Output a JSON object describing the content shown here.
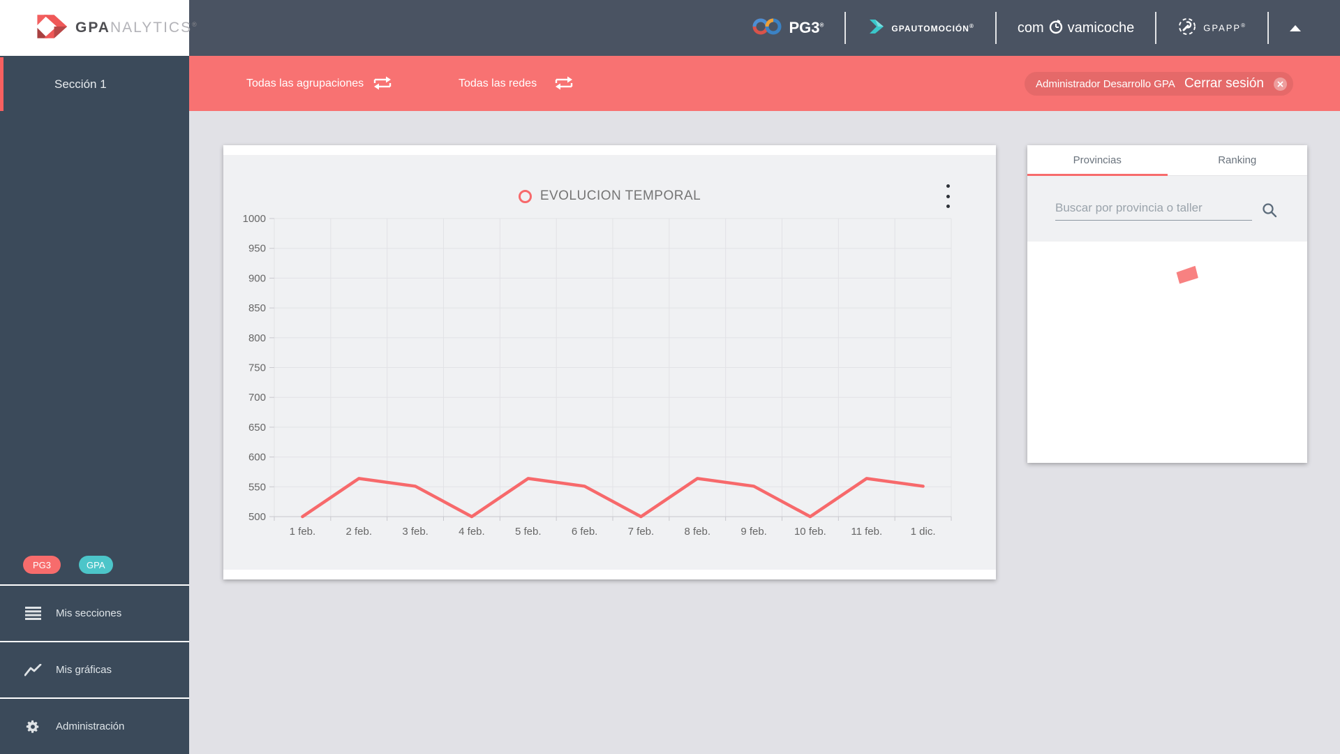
{
  "branding": {
    "gpa": "GPA",
    "nalytics": "NALYTICS",
    "reg": "®"
  },
  "header": {
    "pg3_label": "PG3",
    "pg3_reg": "®",
    "gpautomocion_label": "GPAUTOMOCIÓN",
    "gpautomocion_reg": "®",
    "comprova_pre": "com",
    "comprova_post": "vamicoche",
    "gpapp_label": "GPAPP",
    "gpapp_reg": "®"
  },
  "filter_bar": {
    "groupings_label": "Todas las agrupaciones",
    "networks_label": "Todas las redes",
    "user_name": "Administrador Desarrollo GPA",
    "logout_label": "Cerrar sesión"
  },
  "sidebar": {
    "active_section": "Sección 1",
    "badges": [
      {
        "label": "PG3",
        "color": "#f76c6c"
      },
      {
        "label": "GPA",
        "color": "#4cc5c9"
      }
    ],
    "nav": [
      {
        "label": "Mis secciones",
        "icon": "list-icon"
      },
      {
        "label": "Mis gráficas",
        "icon": "line-chart-icon"
      },
      {
        "label": "Administración",
        "icon": "gear-icon"
      }
    ]
  },
  "chart_data": {
    "type": "line",
    "title": "EVOLUCION TEMPORAL",
    "categories": [
      "1 feb.",
      "2 feb.",
      "3 feb.",
      "4 feb.",
      "5 feb.",
      "6 feb.",
      "7 feb.",
      "8 feb.",
      "9 feb.",
      "10 feb.",
      "11 feb.",
      "1 dic."
    ],
    "series": [
      {
        "name": "EVOLUCION TEMPORAL",
        "values": [
          500,
          564,
          551,
          500,
          564,
          551,
          500,
          564,
          551,
          500,
          564,
          551
        ]
      }
    ],
    "xlabel": "",
    "ylabel": "",
    "ylim": [
      500,
      1000
    ],
    "ytick_step": 50,
    "grid": true,
    "legend_position": "top-center",
    "line_color": "#f7696b"
  },
  "panel": {
    "tabs": [
      {
        "label": "Provincias",
        "active": true
      },
      {
        "label": "Ranking",
        "active": false
      }
    ],
    "search_placeholder": "Buscar por provincia o taller",
    "map_fragment_color": "#f88181"
  },
  "colors": {
    "accent_red": "#f87272",
    "chart_line": "#f7696b",
    "header_dark": "#4a5362",
    "sidebar_dark": "#3b4a5a",
    "teal": "#4cc5c9",
    "page_bg": "#e1e1e6",
    "plot_bg": "#f0f1f3"
  }
}
